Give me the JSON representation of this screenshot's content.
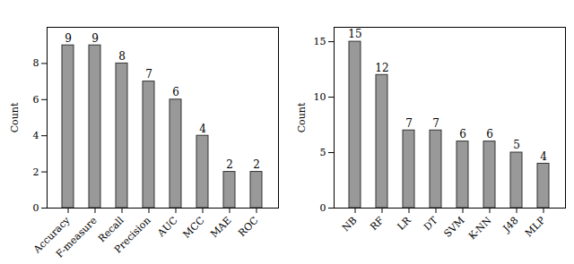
{
  "chart_data": [
    {
      "type": "bar",
      "ylabel": "Count",
      "categories": [
        "Accuracy",
        "F-measure",
        "Recall",
        "Precision",
        "AUC",
        "MCC",
        "MAE",
        "ROC"
      ],
      "values": [
        9,
        9,
        8,
        7,
        6,
        4,
        2,
        2
      ],
      "color": "#999999",
      "ylim": [
        0,
        10
      ],
      "yticks": [
        0,
        2,
        4,
        6,
        8
      ],
      "grid": false,
      "data_labels": true
    },
    {
      "type": "bar",
      "ylabel": "Count",
      "categories": [
        "NB",
        "RF",
        "LR",
        "DT",
        "SVM",
        "K-NN",
        "J48",
        "MLP"
      ],
      "values": [
        15,
        12,
        7,
        7,
        6,
        6,
        5,
        4
      ],
      "color": "#999999",
      "ylim": [
        0,
        16.3
      ],
      "yticks": [
        0,
        5,
        10,
        15
      ],
      "grid": false,
      "data_labels": true
    }
  ]
}
